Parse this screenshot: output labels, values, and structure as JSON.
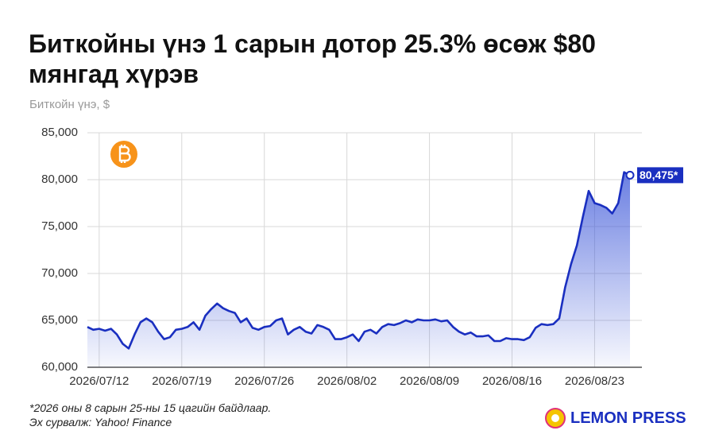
{
  "chart_data": {
    "type": "area",
    "title": "Биткойны үнэ 1 сарын дотор 25.3% өсөж $80 мянгад хүрэв",
    "subtitle": "Биткойн үнэ, $",
    "footnote": "*2026 оны 8 сарын 25-ны 15 цагийн байдлаар.",
    "source": "Эх сурвалж: Yahoo! Finance",
    "brand": "LEMON PRESS",
    "categories": [
      null,
      null,
      "2026/07/12",
      null,
      null,
      null,
      null,
      null,
      null,
      null,
      null,
      null,
      null,
      null,
      null,
      null,
      "2026/07/19",
      null,
      null,
      null,
      null,
      null,
      null,
      null,
      null,
      null,
      null,
      null,
      null,
      null,
      "2026/07/26",
      null,
      null,
      null,
      null,
      null,
      null,
      null,
      null,
      null,
      null,
      null,
      null,
      null,
      "2026/08/02",
      null,
      null,
      null,
      null,
      null,
      null,
      null,
      null,
      null,
      null,
      null,
      null,
      null,
      "2026/08/09",
      null,
      null,
      null,
      null,
      null,
      null,
      null,
      null,
      null,
      null,
      null,
      null,
      null,
      "2026/08/16",
      null,
      null,
      null,
      null,
      null,
      null,
      null,
      null,
      null,
      null,
      null,
      null,
      null,
      "2026/08/23",
      null,
      null,
      null,
      null,
      null,
      null
    ],
    "series": [
      {
        "name": "Биткойн",
        "color": "#1a2fc0",
        "values": [
          64300,
          64000,
          64100,
          63900,
          64100,
          63500,
          62500,
          62000,
          63500,
          64800,
          65200,
          64800,
          63800,
          63000,
          63200,
          64000,
          64100,
          64300,
          64800,
          64000,
          65500,
          66200,
          66800,
          66300,
          66000,
          65800,
          64800,
          65200,
          64200,
          64000,
          64300,
          64400,
          65000,
          65200,
          63500,
          64000,
          64300,
          63800,
          63600,
          64500,
          64300,
          64000,
          63000,
          63000,
          63200,
          63500,
          62800,
          63800,
          64000,
          63600,
          64300,
          64600,
          64500,
          64700,
          65000,
          64800,
          65100,
          65000,
          65000,
          65100,
          64900,
          65000,
          64300,
          63800,
          63500,
          63700,
          63300,
          63300,
          63400,
          62800,
          62800,
          63100,
          63000,
          63000,
          62900,
          63200,
          64200,
          64600,
          64500,
          64600,
          65200,
          68500,
          71000,
          73000,
          76000,
          78800,
          77500,
          77300,
          77000,
          76400,
          77500,
          80800,
          80475
        ],
        "value_labels": [
          null,
          null,
          null,
          null,
          null,
          null,
          null,
          null,
          null,
          null,
          null,
          null,
          null,
          null,
          null,
          null,
          null,
          null,
          null,
          null,
          null,
          null,
          null,
          null,
          null,
          null,
          null,
          null,
          null,
          null,
          null,
          null,
          null,
          null,
          null,
          null,
          null,
          null,
          null,
          null,
          null,
          null,
          null,
          null,
          null,
          null,
          null,
          null,
          null,
          null,
          null,
          null,
          null,
          null,
          null,
          null,
          null,
          null,
          null,
          null,
          null,
          null,
          null,
          null,
          null,
          null,
          null,
          null,
          null,
          null,
          null,
          null,
          null,
          null,
          null,
          null,
          null,
          null,
          null,
          null,
          null,
          null,
          null,
          null,
          null,
          null,
          null,
          null,
          null,
          null,
          null,
          null,
          "80,475*"
        ]
      }
    ],
    "ylim": [
      60000,
      85000
    ],
    "yticks": [
      {
        "value": 60000,
        "label": "60,000"
      },
      {
        "value": 65000,
        "label": "65,000"
      },
      {
        "value": 70000,
        "label": "70,000"
      },
      {
        "value": 75000,
        "label": "75,000"
      },
      {
        "value": 80000,
        "label": "80,000"
      },
      {
        "value": 85000,
        "label": "85,000"
      }
    ],
    "grid": true
  }
}
